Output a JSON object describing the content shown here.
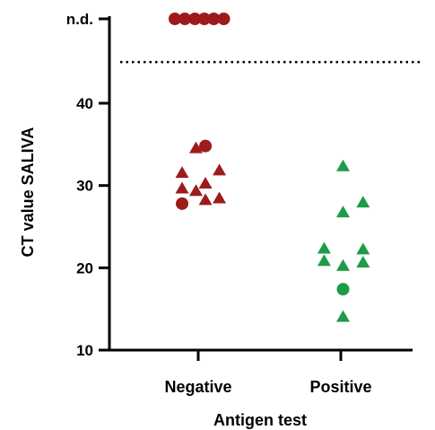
{
  "chart_data": {
    "type": "scatter",
    "xlabel": "Antigen test",
    "ylabel": "CT value SALIVA",
    "categories": [
      "Negative",
      "Positive"
    ],
    "yticks": [
      10,
      20,
      30,
      40
    ],
    "ylim": [
      10,
      50
    ],
    "nd_label": "n.d.",
    "nd_value": 50,
    "threshold": 45,
    "threshold_style": "dotted",
    "series": [
      {
        "category": "Negative",
        "color": "#9e1b1b",
        "points": [
          {
            "x": -0.42,
            "y": 50,
            "marker": "circle",
            "nd": true
          },
          {
            "x": -0.24,
            "y": 50,
            "marker": "circle",
            "nd": true
          },
          {
            "x": -0.06,
            "y": 50,
            "marker": "circle",
            "nd": true
          },
          {
            "x": 0.11,
            "y": 50,
            "marker": "circle",
            "nd": true
          },
          {
            "x": 0.28,
            "y": 50,
            "marker": "circle",
            "nd": true
          },
          {
            "x": 0.46,
            "y": 50,
            "marker": "circle",
            "nd": true
          },
          {
            "x": -0.04,
            "y": 34.5,
            "marker": "triangle"
          },
          {
            "x": 0.13,
            "y": 34.8,
            "marker": "circle"
          },
          {
            "x": -0.29,
            "y": 31.5,
            "marker": "triangle"
          },
          {
            "x": 0.38,
            "y": 31.8,
            "marker": "triangle"
          },
          {
            "x": 0.13,
            "y": 30.2,
            "marker": "triangle"
          },
          {
            "x": -0.29,
            "y": 29.6,
            "marker": "triangle"
          },
          {
            "x": -0.04,
            "y": 29.3,
            "marker": "triangle"
          },
          {
            "x": 0.13,
            "y": 28.2,
            "marker": "triangle"
          },
          {
            "x": 0.38,
            "y": 28.4,
            "marker": "triangle"
          },
          {
            "x": -0.29,
            "y": 27.8,
            "marker": "circle"
          }
        ]
      },
      {
        "category": "Positive",
        "color": "#1f9a4a",
        "points": [
          {
            "x": 0.04,
            "y": 32.3,
            "marker": "triangle"
          },
          {
            "x": 0.04,
            "y": 26.7,
            "marker": "triangle"
          },
          {
            "x": 0.4,
            "y": 27.9,
            "marker": "triangle"
          },
          {
            "x": -0.3,
            "y": 22.3,
            "marker": "triangle"
          },
          {
            "x": 0.4,
            "y": 22.2,
            "marker": "triangle"
          },
          {
            "x": -0.3,
            "y": 20.8,
            "marker": "triangle"
          },
          {
            "x": 0.4,
            "y": 20.6,
            "marker": "triangle"
          },
          {
            "x": 0.04,
            "y": 20.2,
            "marker": "triangle"
          },
          {
            "x": 0.04,
            "y": 17.4,
            "marker": "circle"
          },
          {
            "x": 0.04,
            "y": 14.0,
            "marker": "triangle"
          }
        ]
      }
    ]
  }
}
